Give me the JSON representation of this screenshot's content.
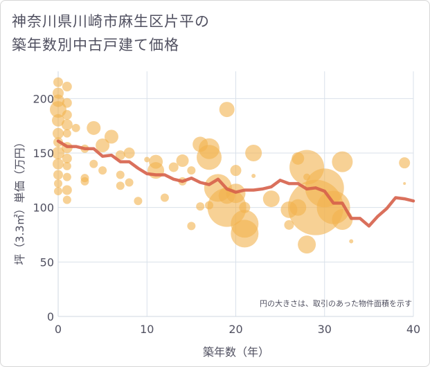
{
  "title": {
    "line1": "神奈川県川崎市麻生区片平の",
    "line2": "築年数別中古戸建て価格"
  },
  "chart_data": {
    "type": "scatter",
    "title": "神奈川県川崎市麻生区片平の築年数別中古戸建て価格",
    "xlabel": "築年数（年）",
    "ylabel": "坪（3.3㎡）単価（万円）",
    "xlim": [
      0,
      40
    ],
    "ylim": [
      0,
      225
    ],
    "x_ticks": [
      0,
      10,
      20,
      30,
      40
    ],
    "y_ticks": [
      0,
      50,
      100,
      150,
      200
    ],
    "grid": true,
    "annotation": "円の大きさは、取引のあった物件面積を示す",
    "colors": {
      "bubble": "#f2b24f",
      "line": "#d6604a",
      "grid": "#d9e1ea",
      "text": "#505060"
    },
    "bubbles": [
      {
        "x": 0,
        "y": 215,
        "r": 7
      },
      {
        "x": 0,
        "y": 205,
        "r": 8
      },
      {
        "x": 0,
        "y": 198,
        "r": 9
      },
      {
        "x": 0,
        "y": 190,
        "r": 12
      },
      {
        "x": 0,
        "y": 180,
        "r": 9
      },
      {
        "x": 0,
        "y": 168,
        "r": 8
      },
      {
        "x": 0,
        "y": 160,
        "r": 7
      },
      {
        "x": 0,
        "y": 150,
        "r": 9
      },
      {
        "x": 0,
        "y": 140,
        "r": 8
      },
      {
        "x": 0,
        "y": 130,
        "r": 7
      },
      {
        "x": 0,
        "y": 122,
        "r": 6
      },
      {
        "x": 0,
        "y": 115,
        "r": 6
      },
      {
        "x": 1,
        "y": 211,
        "r": 7
      },
      {
        "x": 1,
        "y": 196,
        "r": 7
      },
      {
        "x": 1,
        "y": 185,
        "r": 7
      },
      {
        "x": 1,
        "y": 176,
        "r": 8
      },
      {
        "x": 1,
        "y": 168,
        "r": 6
      },
      {
        "x": 1,
        "y": 155,
        "r": 8
      },
      {
        "x": 1,
        "y": 145,
        "r": 7
      },
      {
        "x": 1,
        "y": 138,
        "r": 6
      },
      {
        "x": 1,
        "y": 128,
        "r": 6
      },
      {
        "x": 1,
        "y": 116,
        "r": 7
      },
      {
        "x": 1,
        "y": 107,
        "r": 6
      },
      {
        "x": 2,
        "y": 173,
        "r": 6
      },
      {
        "x": 3,
        "y": 154,
        "r": 6
      },
      {
        "x": 3,
        "y": 127,
        "r": 6
      },
      {
        "x": 3,
        "y": 124,
        "r": 6
      },
      {
        "x": 4,
        "y": 173,
        "r": 10
      },
      {
        "x": 4,
        "y": 140,
        "r": 6
      },
      {
        "x": 5,
        "y": 157,
        "r": 10
      },
      {
        "x": 5,
        "y": 134,
        "r": 6
      },
      {
        "x": 6,
        "y": 165,
        "r": 10
      },
      {
        "x": 7,
        "y": 148,
        "r": 7
      },
      {
        "x": 7,
        "y": 130,
        "r": 6
      },
      {
        "x": 7,
        "y": 120,
        "r": 6
      },
      {
        "x": 8,
        "y": 150,
        "r": 8
      },
      {
        "x": 8,
        "y": 123,
        "r": 6
      },
      {
        "x": 9,
        "y": 106,
        "r": 6
      },
      {
        "x": 10,
        "y": 144,
        "r": 4
      },
      {
        "x": 11,
        "y": 142,
        "r": 10
      },
      {
        "x": 11,
        "y": 134,
        "r": 12
      },
      {
        "x": 12,
        "y": 109,
        "r": 6
      },
      {
        "x": 13,
        "y": 137,
        "r": 7
      },
      {
        "x": 14,
        "y": 143,
        "r": 9
      },
      {
        "x": 14,
        "y": 124,
        "r": 6
      },
      {
        "x": 15,
        "y": 134,
        "r": 6
      },
      {
        "x": 15,
        "y": 83,
        "r": 6
      },
      {
        "x": 16,
        "y": 158,
        "r": 11
      },
      {
        "x": 16,
        "y": 101,
        "r": 6
      },
      {
        "x": 17,
        "y": 154,
        "r": 15
      },
      {
        "x": 17,
        "y": 146,
        "r": 18
      },
      {
        "x": 17,
        "y": 102,
        "r": 6
      },
      {
        "x": 18,
        "y": 118,
        "r": 20
      },
      {
        "x": 19,
        "y": 190,
        "r": 11
      },
      {
        "x": 19,
        "y": 100,
        "r": 28
      },
      {
        "x": 19,
        "y": 111,
        "r": 12
      },
      {
        "x": 20,
        "y": 134,
        "r": 8
      },
      {
        "x": 20,
        "y": 113,
        "r": 14
      },
      {
        "x": 21,
        "y": 100,
        "r": 8
      },
      {
        "x": 21,
        "y": 85,
        "r": 20
      },
      {
        "x": 21,
        "y": 76,
        "r": 20
      },
      {
        "x": 22,
        "y": 150,
        "r": 12
      },
      {
        "x": 22,
        "y": 129,
        "r": 3
      },
      {
        "x": 24,
        "y": 108,
        "r": 12
      },
      {
        "x": 26,
        "y": 98,
        "r": 12
      },
      {
        "x": 26,
        "y": 84,
        "r": 7
      },
      {
        "x": 27,
        "y": 145,
        "r": 9
      },
      {
        "x": 27,
        "y": 100,
        "r": 12
      },
      {
        "x": 28,
        "y": 137,
        "r": 25
      },
      {
        "x": 28,
        "y": 128,
        "r": 5
      },
      {
        "x": 28,
        "y": 66,
        "r": 13
      },
      {
        "x": 29,
        "y": 100,
        "r": 40
      },
      {
        "x": 30,
        "y": 118,
        "r": 28
      },
      {
        "x": 31,
        "y": 100,
        "r": 24
      },
      {
        "x": 32,
        "y": 142,
        "r": 15
      },
      {
        "x": 32,
        "y": 89,
        "r": 15
      },
      {
        "x": 33,
        "y": 69,
        "r": 3
      },
      {
        "x": 39,
        "y": 122,
        "r": 2
      },
      {
        "x": 39,
        "y": 141,
        "r": 8
      }
    ],
    "series": [
      {
        "x": [
          0,
          1,
          2,
          3,
          4,
          5,
          6,
          7,
          8,
          9,
          10,
          11,
          12,
          13,
          14,
          15,
          16,
          17,
          18,
          19,
          20,
          21,
          22,
          23,
          24,
          25,
          26,
          27,
          28,
          29,
          30,
          31,
          32,
          33,
          34,
          35,
          36,
          37,
          38,
          39,
          40
        ],
        "values": [
          161,
          156,
          156,
          154,
          154,
          147,
          148,
          142,
          142,
          136,
          131,
          130,
          130,
          126,
          124,
          127,
          123,
          121,
          126,
          117,
          114,
          116,
          116,
          117,
          119,
          125,
          122,
          122,
          117,
          118,
          115,
          104,
          104,
          90,
          90,
          83,
          92,
          99,
          109,
          108,
          106
        ]
      }
    ]
  }
}
